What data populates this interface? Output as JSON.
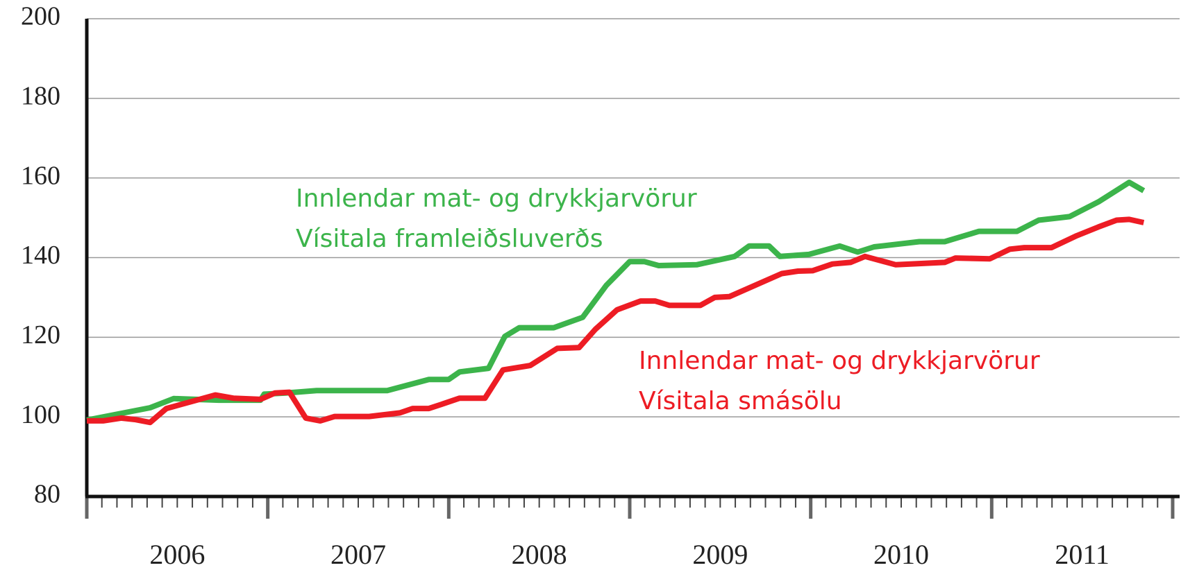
{
  "chart_data": {
    "type": "line",
    "ylim": [
      80,
      200
    ],
    "yticks": [
      80,
      100,
      120,
      140,
      160,
      180,
      200
    ],
    "xlim": [
      2006,
      2012
    ],
    "xticks": [
      {
        "value": 2006.5,
        "label": "2006"
      },
      {
        "value": 2007.5,
        "label": "2007"
      },
      {
        "value": 2008.5,
        "label": "2008"
      },
      {
        "value": 2009.5,
        "label": "2009"
      },
      {
        "value": 2010.5,
        "label": "2010"
      },
      {
        "value": 2011.5,
        "label": "2011"
      }
    ],
    "grid": true,
    "series": [
      {
        "name": "Innlendar mat- og drykkjarvörur Vísitala framleiðsluverðs",
        "color": "#3cb44b",
        "x": [
          2006.0,
          2006.35,
          2006.48,
          2006.73,
          2006.96,
          2006.98,
          2007.1,
          2007.27,
          2007.66,
          2007.89,
          2008.0,
          2008.06,
          2008.22,
          2008.31,
          2008.39,
          2008.58,
          2008.74,
          2008.87,
          2009.0,
          2009.08,
          2009.16,
          2009.37,
          2009.58,
          2009.66,
          2009.77,
          2009.83,
          2009.99,
          2010.16,
          2010.26,
          2010.35,
          2010.6,
          2010.74,
          2010.93,
          2011.14,
          2011.26,
          2011.43,
          2011.59,
          2011.76,
          2011.84
        ],
        "values": [
          99.2,
          102.3,
          104.6,
          104.2,
          104.2,
          105.7,
          106.0,
          106.6,
          106.6,
          109.4,
          109.4,
          111.3,
          112.2,
          120.2,
          122.4,
          122.4,
          125.0,
          133.0,
          139.0,
          139.0,
          138.0,
          138.2,
          140.3,
          142.9,
          142.9,
          140.3,
          140.8,
          142.9,
          141.4,
          142.7,
          144.0,
          144.0,
          146.6,
          146.6,
          149.4,
          150.3,
          154.0,
          158.9,
          156.8
        ]
      },
      {
        "name": "Innlendar mat- og drykkjarvörur Vísitala smásölu",
        "color": "#ed1c24",
        "x": [
          2006.0,
          2006.09,
          2006.19,
          2006.27,
          2006.35,
          2006.44,
          2006.71,
          2006.81,
          2006.96,
          2007.04,
          2007.12,
          2007.21,
          2007.29,
          2007.37,
          2007.56,
          2007.73,
          2007.8,
          2007.89,
          2007.97,
          2008.06,
          2008.2,
          2008.3,
          2008.45,
          2008.6,
          2008.72,
          2008.81,
          2008.93,
          2009.06,
          2009.14,
          2009.22,
          2009.39,
          2009.47,
          2009.55,
          2009.84,
          2009.93,
          2010.01,
          2010.12,
          2010.22,
          2010.3,
          2010.47,
          2010.74,
          2010.8,
          2010.99,
          2011.1,
          2011.18,
          2011.33,
          2011.47,
          2011.59,
          2011.69,
          2011.76,
          2011.84
        ],
        "values": [
          99.0,
          99.0,
          99.7,
          99.3,
          98.6,
          102.1,
          105.5,
          104.7,
          104.4,
          106.0,
          106.2,
          99.7,
          99.0,
          100.1,
          100.1,
          101.0,
          102.1,
          102.1,
          103.3,
          104.7,
          104.7,
          111.8,
          112.9,
          117.2,
          117.4,
          122.0,
          126.9,
          129.1,
          129.1,
          128.0,
          128.0,
          130.0,
          130.2,
          136.0,
          136.6,
          136.7,
          138.4,
          138.8,
          140.3,
          138.2,
          138.8,
          139.9,
          139.7,
          142.1,
          142.5,
          142.5,
          145.5,
          147.7,
          149.4,
          149.6,
          148.8
        ]
      }
    ],
    "annotations": [
      {
        "lines": [
          "Innlendar mat- og drykkjarvörur",
          "Vísitala framleiðsluverðs"
        ],
        "color": "#3cb44b"
      },
      {
        "lines": [
          "Innlendar mat- og drykkjarvörur",
          "Vísitala smásölu"
        ],
        "color": "#ed1c24"
      }
    ]
  }
}
